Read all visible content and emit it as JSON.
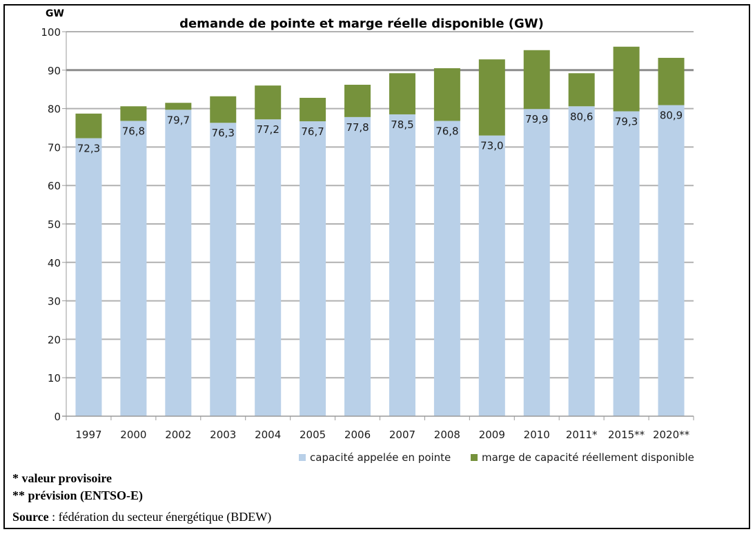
{
  "chart_data": {
    "type": "bar",
    "stacked": true,
    "title": "demande de pointe et marge réelle disponible (GW)",
    "ylabel": "GW",
    "xlabel": "",
    "ylim": [
      0,
      100
    ],
    "yticks": [
      0,
      10,
      20,
      30,
      40,
      50,
      60,
      70,
      80,
      90,
      100
    ],
    "grid": true,
    "legend_position": "bottom-right",
    "categories": [
      "1997",
      "2000",
      "2002",
      "2003",
      "2004",
      "2005",
      "2006",
      "2007",
      "2008",
      "2009",
      "2010",
      "2011*",
      "2015**",
      "2020**"
    ],
    "series": [
      {
        "name": "capacité appelée en pointe",
        "color": "#b9d0e8",
        "values": [
          72.3,
          76.8,
          79.7,
          76.3,
          77.2,
          76.7,
          77.8,
          78.5,
          76.8,
          73.0,
          79.9,
          80.6,
          79.3,
          80.9
        ],
        "labels": [
          "72,3",
          "76,8",
          "79,7",
          "76,3",
          "77,2",
          "76,7",
          "77,8",
          "78,5",
          "76,8",
          "73,0",
          "79,9",
          "80,6",
          "79,3",
          "80,9"
        ]
      },
      {
        "name": "marge de capacité réellement disponible",
        "color": "#76923c",
        "values": [
          6.4,
          3.8,
          1.8,
          6.9,
          8.8,
          6.1,
          8.4,
          10.7,
          13.7,
          19.8,
          15.3,
          8.6,
          16.8,
          12.3
        ]
      }
    ]
  },
  "notes": {
    "note1": "* valeur provisoire",
    "note2": "** prévision (ENTSO-E)",
    "source_label": "Source",
    "source_text": " : fédération du secteur énergétique (BDEW)"
  }
}
